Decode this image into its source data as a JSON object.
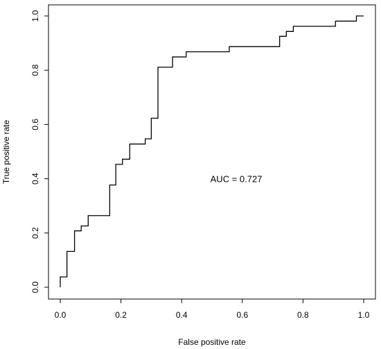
{
  "chart_data": {
    "type": "line",
    "title": "",
    "xlabel": "False positive rate",
    "ylabel": "True positive rate",
    "xlim": [
      0,
      1
    ],
    "ylim": [
      0,
      1
    ],
    "grid": false,
    "x_ticks": [
      "0.0",
      "0.2",
      "0.4",
      "0.6",
      "0.8",
      "1.0"
    ],
    "y_ticks": [
      "0.0",
      "0.2",
      "0.4",
      "0.6",
      "0.8",
      "1.0"
    ],
    "annotation": {
      "text": "AUC = 0.727",
      "x": 0.58,
      "y": 0.4
    },
    "series": [
      {
        "values": [
          [
            0.0,
            0.0
          ],
          [
            0.0,
            0.038
          ],
          [
            0.022,
            0.038
          ],
          [
            0.022,
            0.132
          ],
          [
            0.047,
            0.132
          ],
          [
            0.047,
            0.208
          ],
          [
            0.069,
            0.208
          ],
          [
            0.069,
            0.226
          ],
          [
            0.092,
            0.226
          ],
          [
            0.092,
            0.264
          ],
          [
            0.163,
            0.264
          ],
          [
            0.163,
            0.377
          ],
          [
            0.183,
            0.377
          ],
          [
            0.183,
            0.453
          ],
          [
            0.205,
            0.453
          ],
          [
            0.205,
            0.472
          ],
          [
            0.229,
            0.472
          ],
          [
            0.229,
            0.528
          ],
          [
            0.28,
            0.528
          ],
          [
            0.28,
            0.547
          ],
          [
            0.3,
            0.547
          ],
          [
            0.3,
            0.623
          ],
          [
            0.322,
            0.623
          ],
          [
            0.322,
            0.811
          ],
          [
            0.37,
            0.811
          ],
          [
            0.37,
            0.849
          ],
          [
            0.415,
            0.849
          ],
          [
            0.415,
            0.868
          ],
          [
            0.557,
            0.868
          ],
          [
            0.557,
            0.887
          ],
          [
            0.723,
            0.887
          ],
          [
            0.723,
            0.925
          ],
          [
            0.745,
            0.925
          ],
          [
            0.745,
            0.943
          ],
          [
            0.768,
            0.943
          ],
          [
            0.768,
            0.962
          ],
          [
            0.907,
            0.962
          ],
          [
            0.907,
            0.981
          ],
          [
            0.976,
            0.981
          ],
          [
            0.976,
            1.0
          ],
          [
            1.0,
            1.0
          ]
        ]
      }
    ]
  }
}
